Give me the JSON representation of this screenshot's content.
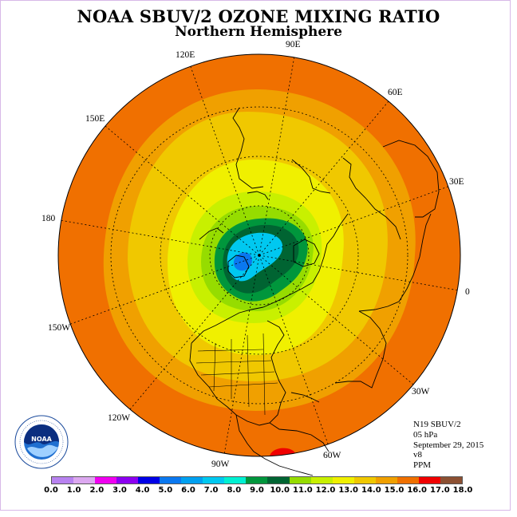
{
  "title": "NOAA SBUV/2 OZONE MIXING RATIO",
  "subtitle": "Northern Hemisphere",
  "longitude_labels": [
    "90E",
    "60E",
    "30E",
    "0",
    "30W",
    "60W",
    "90W",
    "120W",
    "150W",
    "180",
    "150E",
    "120E"
  ],
  "info": {
    "satellite": "N19 SBUV/2",
    "level": "05 hPa",
    "date": "September 29, 2015",
    "version": "v8",
    "units": "PPM"
  },
  "logo_text": "NOAA",
  "colorbar": {
    "labels": [
      "0.0",
      "1.0",
      "2.0",
      "3.0",
      "4.0",
      "5.0",
      "6.0",
      "7.0",
      "8.0",
      "9.0",
      "10.0",
      "11.0",
      "12.0",
      "13.0",
      "14.0",
      "15.0",
      "16.0",
      "17.0",
      "18.0"
    ],
    "colors": [
      "#b882f0",
      "#dca8f0",
      "#f000f0",
      "#8c00f0",
      "#0000e6",
      "#0a78f0",
      "#00a0f0",
      "#00c8f0",
      "#00f0d2",
      "#00963c",
      "#006432",
      "#96dc00",
      "#c8f000",
      "#f0f000",
      "#f0c800",
      "#f0a000",
      "#f07000",
      "#f00000",
      "#8c5032"
    ]
  }
}
